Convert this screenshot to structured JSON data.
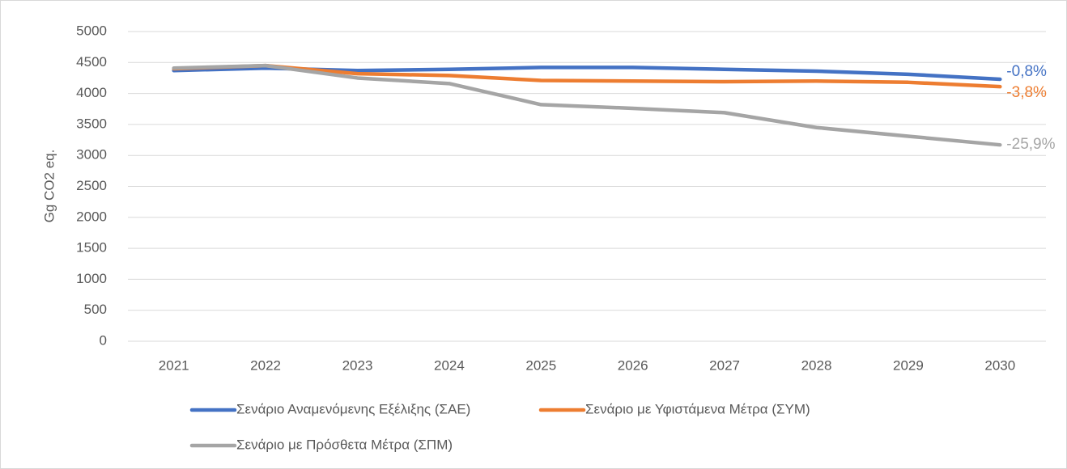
{
  "chart_data": {
    "type": "line",
    "y_label": "Gg CO2 eq.",
    "categories": [
      "2021",
      "2022",
      "2023",
      "2024",
      "2025",
      "2026",
      "2027",
      "2028",
      "2029",
      "2030"
    ],
    "series": [
      {
        "name": "Σενάριο Αναμενόμενης Εξέλιξης (ΣΑΕ)",
        "color": "#4472c4",
        "end_label": "-0,8%",
        "values": [
          4370,
          4410,
          4370,
          4390,
          4420,
          4420,
          4390,
          4360,
          4310,
          4230
        ]
      },
      {
        "name": "Σενάριο με Υφιστάμενα Μέτρα (ΣΥΜ)",
        "color": "#ed7d31",
        "end_label": "-3,8%",
        "values": [
          4400,
          4450,
          4320,
          4290,
          4210,
          4200,
          4190,
          4200,
          4180,
          4110
        ]
      },
      {
        "name": "Σενάριο με Πρόσθετα Μέτρα (ΣΠΜ)",
        "color": "#a5a5a5",
        "end_label": "-25,9%",
        "values": [
          4410,
          4450,
          4250,
          4160,
          3820,
          3760,
          3690,
          3450,
          3310,
          3170
        ]
      }
    ],
    "ylim": [
      0,
      5000
    ],
    "yticks": [
      0,
      500,
      1000,
      1500,
      2000,
      2500,
      3000,
      3500,
      4000,
      4500,
      5000
    ],
    "grid": true,
    "legend": "bottom"
  }
}
